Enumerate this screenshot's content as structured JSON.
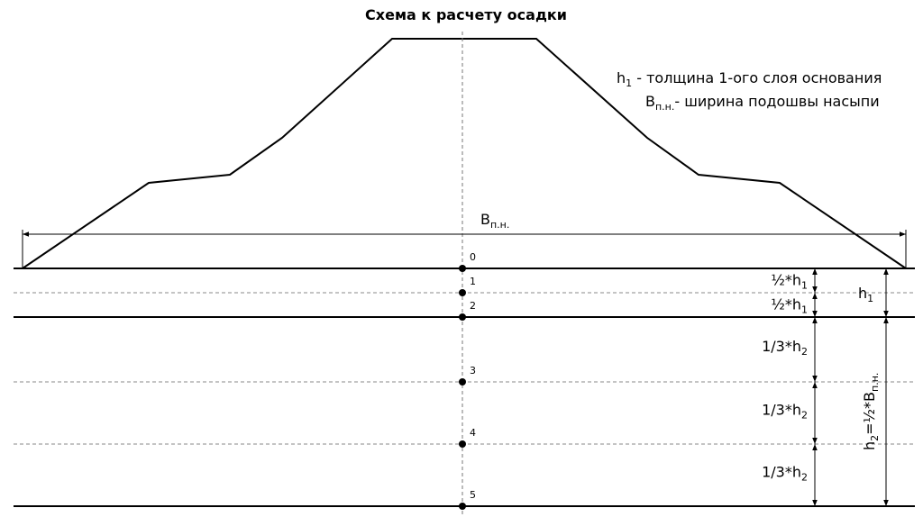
{
  "title": "Схема к расчету осадки",
  "legend": [
    {
      "symbol": "h",
      "subscript": "1",
      "text": " - толщина 1-ого слоя основания"
    },
    {
      "symbol": "B",
      "subscript": "п.н.",
      "text": "- ширина подошвы насыпи"
    }
  ],
  "width_label": {
    "symbol": "B",
    "subscript": "п.н."
  },
  "points": [
    "0",
    "1",
    "2",
    "3",
    "4",
    "5"
  ],
  "dimensions": [
    {
      "prefix": "½*h",
      "subscript": "1"
    },
    {
      "prefix": "½*h",
      "subscript": "1"
    },
    {
      "prefix": "1/3*h",
      "subscript": "2"
    },
    {
      "prefix": "1/3*h",
      "subscript": "2"
    },
    {
      "prefix": "1/3*h",
      "subscript": "2"
    }
  ],
  "h1_label": {
    "symbol": "h",
    "subscript": "1"
  },
  "h2_label": {
    "symbol": "h",
    "subscript": "2",
    "text": "=½*B",
    "subscript2": "п.н."
  }
}
